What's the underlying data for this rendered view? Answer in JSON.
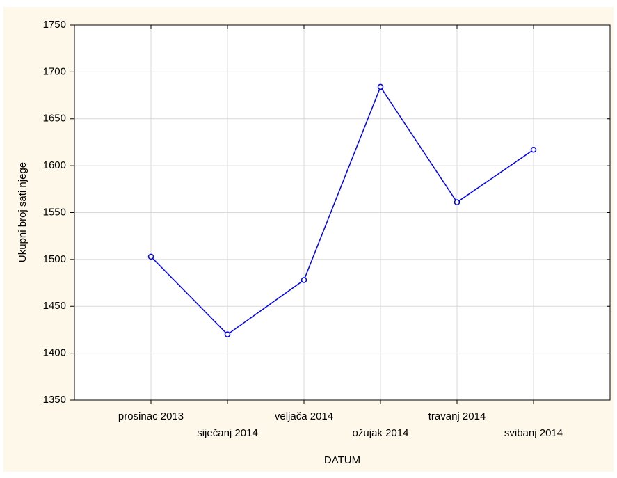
{
  "chart_data": {
    "type": "line",
    "x_label": "DATUM",
    "y_label": "Ukupni broj sati njege",
    "categories": [
      "prosinac 2013",
      "siječanj 2014",
      "veljača 2014",
      "ožujak 2014",
      "travanj 2014",
      "svibanj 2014"
    ],
    "series": [
      {
        "color": "#0000ff",
        "values": [
          1503,
          1420,
          1478,
          1684,
          1561,
          1617
        ]
      }
    ],
    "ylim": [
      1350,
      1750
    ],
    "yticks": [
      1350,
      1400,
      1450,
      1500,
      1550,
      1600,
      1650,
      1700,
      1750
    ],
    "grid": true
  }
}
